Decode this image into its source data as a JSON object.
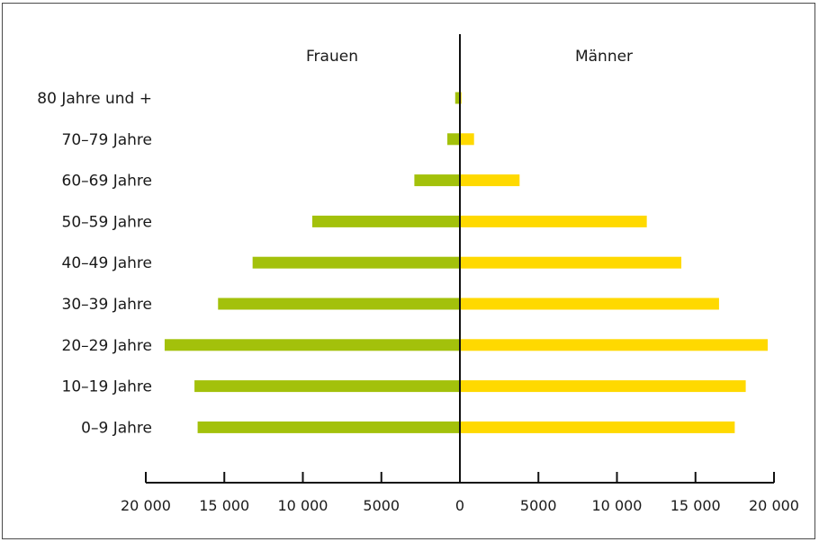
{
  "chart_data": {
    "type": "bar",
    "orientation": "horizontal-population-pyramid",
    "left_header": "Frauen",
    "right_header": "Männer",
    "categories": [
      "80 Jahre und +",
      "70–79 Jahre",
      "60–69 Jahre",
      "50–59 Jahre",
      "40–49 Jahre",
      "30–39 Jahre",
      "20–29 Jahre",
      "10–19 Jahre",
      "0–9 Jahre"
    ],
    "series": [
      {
        "values": [
          300,
          800,
          2900,
          9400,
          13200,
          15400,
          18800,
          16900,
          16700
        ]
      },
      {
        "values": [
          100,
          900,
          3800,
          11900,
          14100,
          16500,
          19600,
          18200,
          17500
        ]
      }
    ],
    "colors": {
      "left": "#a3c10b",
      "right": "#ffd900",
      "axis": "#111111"
    },
    "xlim": [
      -20000,
      20000
    ],
    "x_ticks": [
      -20000,
      -15000,
      -10000,
      -5000,
      0,
      5000,
      10000,
      15000,
      20000
    ],
    "x_tick_labels": [
      "20 000",
      "15 000",
      "10 000",
      "5000",
      "0",
      "5000",
      "10 000",
      "15 000",
      "20 000"
    ],
    "grid": false
  }
}
